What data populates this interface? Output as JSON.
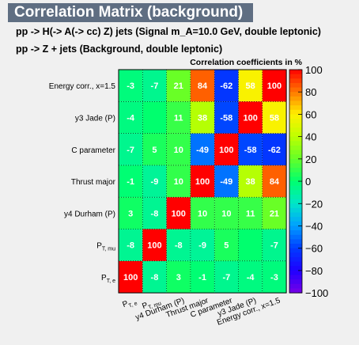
{
  "header": {
    "title": "Correlation Matrix (background)",
    "process_line_1": "pp -> H(-> A(-> cc)  Z) jets (Signal m_A=10.0 GeV, double leptonic)",
    "process_line_2": "pp -> Z + jets (Background, double leptonic)"
  },
  "chart_data": {
    "type": "heatmap",
    "title": "Correlation coefficients in %",
    "variables": [
      {
        "main": "P",
        "sub": "T, e"
      },
      {
        "main": "P",
        "sub": "T, mu"
      },
      {
        "main": "y4 Durham (P)",
        "sub": ""
      },
      {
        "main": "Thrust major",
        "sub": ""
      },
      {
        "main": "C parameter",
        "sub": ""
      },
      {
        "main": "y3 Jade (P)",
        "sub": ""
      },
      {
        "main": "Energy corr., x=1.5",
        "sub": ""
      }
    ],
    "matrix": [
      [
        100,
        -8,
        3,
        -1,
        -7,
        -4,
        -3
      ],
      [
        -8,
        100,
        -8,
        -9,
        5,
        0,
        -7
      ],
      [
        3,
        -8,
        100,
        10,
        10,
        11,
        21
      ],
      [
        -1,
        -9,
        10,
        100,
        -49,
        38,
        84
      ],
      [
        -7,
        5,
        10,
        -49,
        100,
        -58,
        -62
      ],
      [
        -4,
        0,
        11,
        38,
        -58,
        100,
        58
      ],
      [
        -3,
        -7,
        21,
        84,
        -62,
        58,
        100
      ]
    ],
    "zlim": [
      -100,
      100
    ],
    "colorbar_ticks": [
      100,
      80,
      60,
      40,
      20,
      0,
      -20,
      -40,
      -60,
      -80,
      -100
    ],
    "colorbar_tick_labels": [
      "100",
      "80",
      "60",
      "40",
      "20",
      "0",
      "−20",
      "−40",
      "−60",
      "−80",
      "−100"
    ],
    "grid": true,
    "colorbar": "right"
  }
}
